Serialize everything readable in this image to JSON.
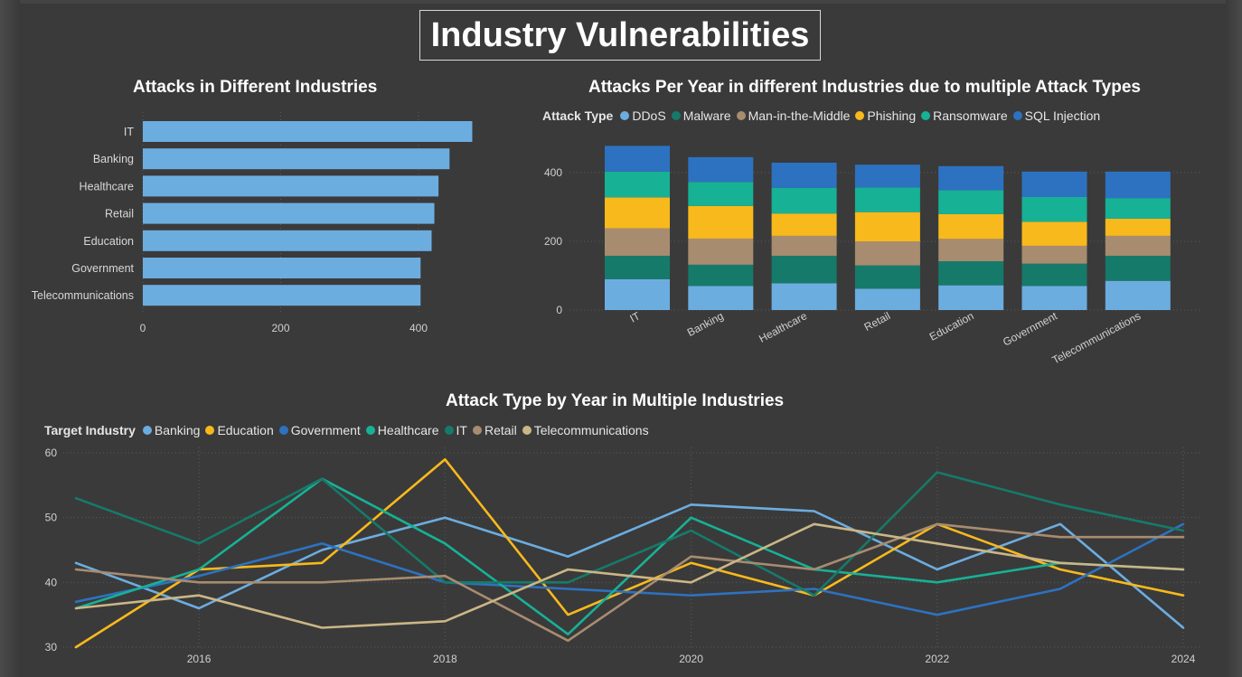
{
  "page_title": "Industry Vulnerabilities",
  "chart_data": [
    {
      "type": "bar",
      "orientation": "horizontal",
      "title": "Attacks in Different Industries",
      "categories": [
        "IT",
        "Banking",
        "Healthcare",
        "Retail",
        "Education",
        "Government",
        "Telecommunications"
      ],
      "values": [
        478,
        445,
        429,
        423,
        419,
        403,
        403
      ],
      "xlim": [
        0,
        480
      ],
      "x_ticks": [
        0,
        200,
        400
      ],
      "grid": true,
      "color": "#6cade0"
    },
    {
      "type": "bar",
      "stacked": true,
      "title": "Attacks Per Year in different Industries due to multiple Attack Types",
      "legend_title": "Attack Type",
      "legend_position": "top-left",
      "categories": [
        "IT",
        "Banking",
        "Healthcare",
        "Retail",
        "Education",
        "Government",
        "Telecommunications"
      ],
      "series": [
        {
          "name": "DDoS",
          "color": "#6cade0",
          "values": [
            90,
            70,
            78,
            62,
            72,
            70,
            85
          ]
        },
        {
          "name": "Malware",
          "color": "#167a6a",
          "values": [
            68,
            62,
            80,
            68,
            70,
            65,
            73
          ]
        },
        {
          "name": "Man-in-the-Middle",
          "color": "#a88c70",
          "values": [
            80,
            76,
            58,
            70,
            65,
            52,
            58
          ]
        },
        {
          "name": "Phishing",
          "color": "#f8b91c",
          "values": [
            90,
            95,
            65,
            85,
            72,
            70,
            50
          ]
        },
        {
          "name": "Ransomware",
          "color": "#17b195",
          "values": [
            75,
            70,
            75,
            72,
            70,
            72,
            60
          ]
        },
        {
          "name": "SQL Injection",
          "color": "#2d72c1",
          "values": [
            75,
            72,
            73,
            66,
            70,
            74,
            77
          ]
        }
      ],
      "ylim": [
        0,
        480
      ],
      "y_ticks": [
        0,
        200,
        400
      ],
      "grid": true
    },
    {
      "type": "line",
      "title": "Attack Type by Year in Multiple Industries",
      "legend_title": "Target Industry",
      "legend_position": "top-left",
      "x": [
        2015,
        2016,
        2017,
        2018,
        2019,
        2020,
        2021,
        2022,
        2023,
        2024
      ],
      "x_ticks": [
        2016,
        2018,
        2020,
        2022,
        2024
      ],
      "ylim": [
        30,
        60
      ],
      "y_ticks": [
        30,
        40,
        50,
        60
      ],
      "grid": true,
      "series": [
        {
          "name": "Banking",
          "color": "#6cade0",
          "values": [
            43,
            36,
            45,
            50,
            44,
            52,
            51,
            42,
            49,
            33
          ]
        },
        {
          "name": "Education",
          "color": "#f8b91c",
          "values": [
            30,
            42,
            43,
            59,
            35,
            43,
            38,
            49,
            42,
            38
          ]
        },
        {
          "name": "Government",
          "color": "#2d72c1",
          "values": [
            37,
            41,
            46,
            40,
            39,
            38,
            39,
            35,
            39,
            49
          ]
        },
        {
          "name": "Healthcare",
          "color": "#17b195",
          "values": [
            36,
            42,
            56,
            46,
            32,
            50,
            42,
            40,
            43,
            42
          ]
        },
        {
          "name": "IT",
          "color": "#167a6a",
          "values": [
            53,
            46,
            56,
            40,
            40,
            48,
            38,
            57,
            52,
            48
          ]
        },
        {
          "name": "Retail",
          "color": "#a88c70",
          "values": [
            42,
            40,
            40,
            41,
            31,
            44,
            42,
            49,
            47,
            47
          ]
        },
        {
          "name": "Telecommunications",
          "color": "#cbb686",
          "values": [
            36,
            38,
            33,
            34,
            42,
            40,
            49,
            46,
            43,
            42
          ]
        }
      ]
    }
  ]
}
